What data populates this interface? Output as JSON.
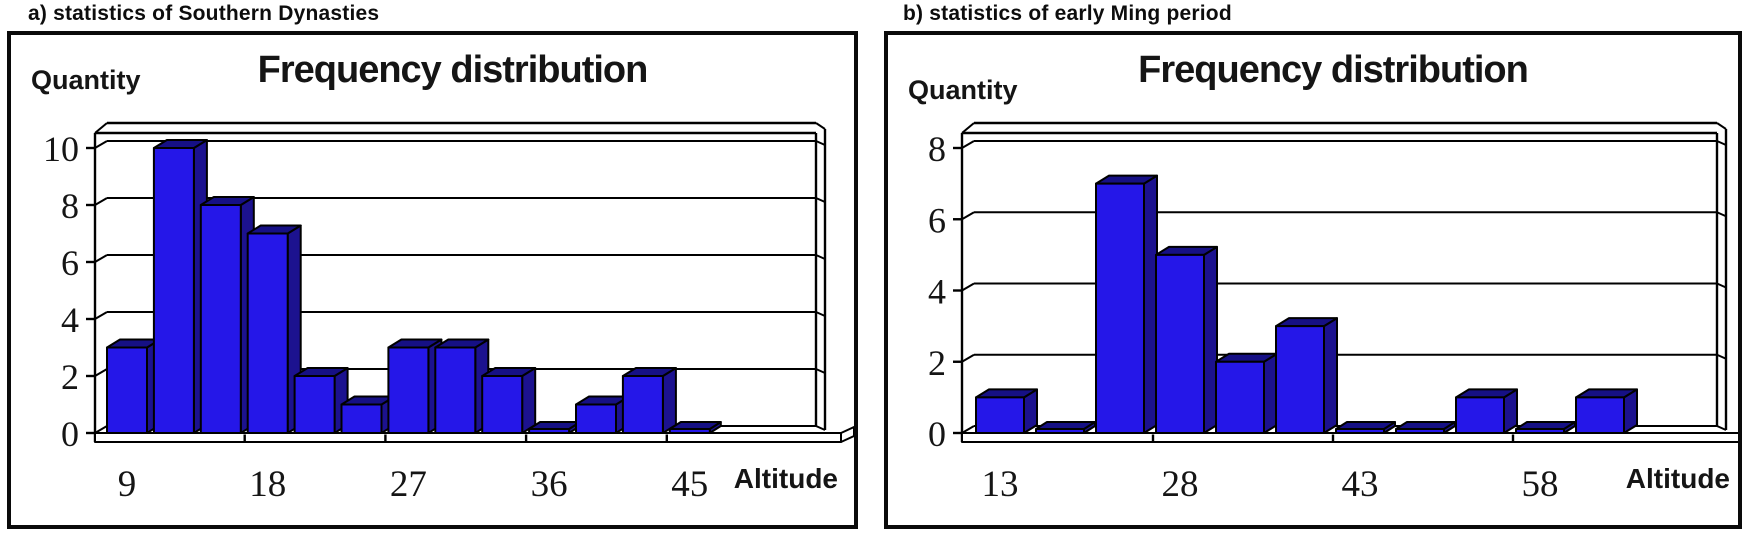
{
  "figure": {
    "background": "#ffffff"
  },
  "colors": {
    "bar_front": "#2517e8",
    "bar_top": "#161085",
    "bar_side": "#1c128f",
    "outline": "#000000",
    "panel_border": "#0a0a0a",
    "text": "#151515"
  },
  "panels": [
    {
      "header": "a) statistics of Southern Dynasties"
    },
    {
      "header": "b) statistics of early Ming period"
    }
  ],
  "chart_data": [
    {
      "type": "bar",
      "style": "3d-column",
      "title": "Frequency distribution",
      "xlabel": "Altitude",
      "ylabel": "Quantity",
      "categories": [
        9,
        12,
        15,
        18,
        21,
        24,
        27,
        30,
        33,
        36,
        39,
        42,
        45
      ],
      "values": [
        3,
        10,
        8,
        7,
        2,
        1,
        3,
        3,
        2,
        0,
        1,
        2,
        0
      ],
      "x_tick_labels": [
        "9",
        "18",
        "27",
        "36",
        "45"
      ],
      "x_tick_slots": [
        0,
        3,
        6,
        9,
        12
      ],
      "y_ticks": [
        0,
        2,
        4,
        6,
        8,
        10
      ],
      "ylim": [
        0,
        10.5
      ],
      "grid": "horizontal",
      "legend": "none"
    },
    {
      "type": "bar",
      "style": "3d-column",
      "title": "Frequency distribution",
      "xlabel": "Altitude",
      "ylabel": "Quantity",
      "categories": [
        13,
        18,
        23,
        28,
        33,
        38,
        43,
        48,
        53,
        58,
        63
      ],
      "values": [
        1,
        0,
        7,
        5,
        2,
        3,
        0,
        0,
        1,
        0,
        1
      ],
      "x_tick_labels": [
        "13",
        "28",
        "43",
        "58"
      ],
      "x_tick_slots": [
        0,
        3,
        6,
        9
      ],
      "y_ticks": [
        0,
        2,
        4,
        6,
        8
      ],
      "ylim": [
        0,
        8.5
      ],
      "grid": "horizontal",
      "legend": "none"
    }
  ]
}
